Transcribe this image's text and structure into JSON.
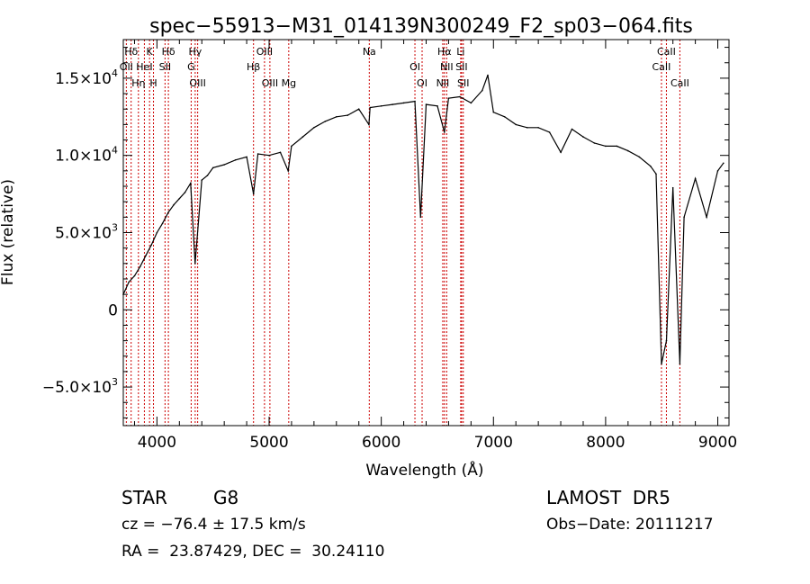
{
  "chart_data": {
    "type": "line",
    "title": "spec−55913−M31_014139N300249_F2_sp03−064.fits",
    "xlabel": "Wavelength (Å)",
    "ylabel": "Flux (relative)",
    "xlim": [
      3700,
      9100
    ],
    "ylim": [
      -7500,
      17500
    ],
    "x_ticks": [
      4000,
      5000,
      6000,
      7000,
      8000,
      9000
    ],
    "x_tick_labels": [
      "4000",
      "5000",
      "6000",
      "7000",
      "8000",
      "9000"
    ],
    "y_ticks": [
      -5000,
      0,
      5000,
      10000,
      15000
    ],
    "y_tick_labels": [
      {
        "mantissa": "−5.0×10",
        "exp": "3"
      },
      {
        "mantissa": "0",
        "exp": ""
      },
      {
        "mantissa": "5.0×10",
        "exp": "3"
      },
      {
        "mantissa": "1.0×10",
        "exp": "4"
      },
      {
        "mantissa": "1.5×10",
        "exp": "4"
      }
    ],
    "series": [
      {
        "x": [
          3700,
          3750,
          3800,
          3850,
          3900,
          3950,
          4000,
          4050,
          4100,
          4150,
          4200,
          4250,
          4300,
          4340,
          4400,
          4450,
          4500,
          4600,
          4700,
          4800,
          4861,
          4900,
          5000,
          5100,
          5170,
          5200,
          5300,
          5400,
          5500,
          5600,
          5700,
          5800,
          5890,
          5900,
          6000,
          6100,
          6200,
          6300,
          6350,
          6400,
          6500,
          6563,
          6600,
          6700,
          6800,
          6900,
          6950,
          7000,
          7100,
          7200,
          7300,
          7400,
          7500,
          7600,
          7700,
          7800,
          7900,
          8000,
          8100,
          8200,
          8300,
          8400,
          8450,
          8498,
          8542,
          8600,
          8662,
          8700,
          8800,
          8900,
          9000,
          9050
        ],
        "y": [
          1000,
          1800,
          2200,
          2800,
          3500,
          4200,
          5000,
          5600,
          6300,
          6800,
          7200,
          7600,
          8200,
          3000,
          8400,
          8700,
          9200,
          9400,
          9700,
          9900,
          7500,
          10100,
          10000,
          10200,
          9000,
          10600,
          11200,
          11800,
          12200,
          12500,
          12600,
          13000,
          12000,
          13100,
          13200,
          13300,
          13400,
          13500,
          6000,
          13300,
          13200,
          11500,
          13700,
          13800,
          13400,
          14200,
          15200,
          12800,
          12500,
          12000,
          11800,
          11800,
          11500,
          10200,
          11700,
          11200,
          10800,
          10600,
          10600,
          10300,
          9900,
          9300,
          8800,
          -3500,
          -2000,
          7900,
          -3500,
          6000,
          8500,
          6000,
          9000,
          9500
        ]
      }
    ],
    "line_ids": [
      {
        "label": "Hδ",
        "x": 3770
      },
      {
        "label": "OII",
        "x": 3727
      },
      {
        "label": "Hη",
        "x": 3835
      },
      {
        "label": "K",
        "x": 3934
      },
      {
        "label": "HeI",
        "x": 3888
      },
      {
        "label": "H",
        "x": 3969
      },
      {
        "label": "Hδ",
        "x": 4102
      },
      {
        "label": "SII",
        "x": 4072
      },
      {
        "label": "OIII",
        "x": 4363
      },
      {
        "label": "Hγ",
        "x": 4341
      },
      {
        "label": "G",
        "x": 4305
      },
      {
        "label": "OIII",
        "x": 5007
      },
      {
        "label": "OIII",
        "x": 4959
      },
      {
        "label": "Hβ",
        "x": 4861
      },
      {
        "label": "Mg",
        "x": 5175
      },
      {
        "label": "Na",
        "x": 5893
      },
      {
        "label": "OI",
        "x": 6300
      },
      {
        "label": "OI",
        "x": 6364
      },
      {
        "label": "Hα",
        "x": 6563
      },
      {
        "label": "SII",
        "x": 6716
      },
      {
        "label": "NII",
        "x": 6548
      },
      {
        "label": "Li",
        "x": 6708
      },
      {
        "label": "NII",
        "x": 6583
      },
      {
        "label": "SII",
        "x": 6731
      },
      {
        "label": "CaII",
        "x": 8542
      },
      {
        "label": "CaII",
        "x": 8498
      },
      {
        "label": "CaII",
        "x": 8662
      }
    ],
    "grid": false,
    "legend": "none"
  },
  "info": {
    "class": "STAR",
    "subclass": "G8",
    "survey": "LAMOST  DR5",
    "cz": "cz = −76.4 ± 17.5 km/s",
    "obs_date": "Obs−Date: 20111217",
    "coords": "RA =  23.87429, DEC =  30.24110"
  }
}
